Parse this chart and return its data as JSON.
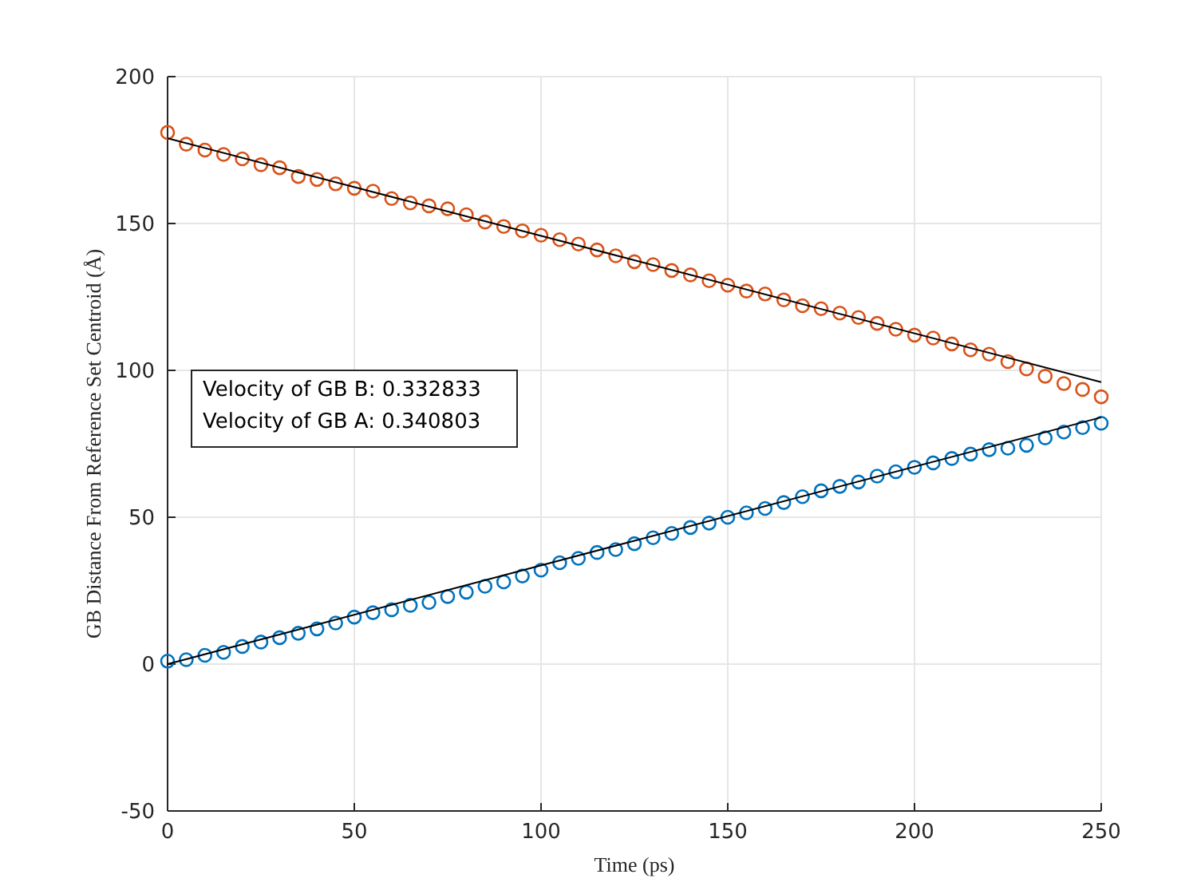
{
  "chart_data": {
    "type": "scatter",
    "xlabel": "Time (ps)",
    "ylabel": "GB Distance From Reference Set Centroid (Å)",
    "xlim": [
      0,
      250
    ],
    "ylim": [
      -50,
      200
    ],
    "xticks": [
      0,
      50,
      100,
      150,
      200,
      250
    ],
    "yticks": [
      -50,
      0,
      50,
      100,
      150,
      200
    ],
    "grid": true,
    "x": [
      0,
      5,
      10,
      15,
      20,
      25,
      30,
      35,
      40,
      45,
      50,
      55,
      60,
      65,
      70,
      75,
      80,
      85,
      90,
      95,
      100,
      105,
      110,
      115,
      120,
      125,
      130,
      135,
      140,
      145,
      150,
      155,
      160,
      165,
      170,
      175,
      180,
      185,
      190,
      195,
      200,
      205,
      210,
      215,
      220,
      225,
      230,
      235,
      240,
      245,
      250
    ],
    "series": [
      {
        "color": "#d95319",
        "marker": "circle",
        "values": [
          181,
          177,
          175,
          173.5,
          172,
          170,
          169,
          166,
          165,
          163.5,
          162,
          161,
          158.5,
          157,
          156,
          155,
          153,
          150.5,
          149,
          147.5,
          146,
          144.5,
          143,
          141,
          139,
          137,
          136,
          134,
          132.5,
          130.5,
          129,
          127,
          126,
          124,
          122,
          121,
          119.5,
          118,
          116,
          114,
          112,
          111,
          109,
          107,
          105.5,
          103,
          100.5,
          98,
          95.5,
          93.5,
          91
        ]
      },
      {
        "color": "#0072bd",
        "marker": "circle",
        "values": [
          1,
          1.5,
          3,
          4,
          6,
          7.5,
          9,
          10.5,
          12,
          14,
          16,
          17.5,
          18.5,
          20,
          21,
          23,
          24.5,
          26.5,
          28,
          30,
          32,
          34.5,
          36,
          38,
          39,
          41,
          43,
          44.5,
          46.5,
          48,
          50,
          51.5,
          53,
          55,
          57,
          59,
          60.5,
          62,
          64,
          65.5,
          67,
          68.5,
          70,
          71.5,
          73,
          73.5,
          74.5,
          77,
          79,
          80.5,
          82
        ]
      },
      {
        "type": "line",
        "color": "#000000",
        "marker": "none",
        "x": [
          0,
          125,
          250
        ],
        "values": [
          179,
          137.5,
          96
        ]
      },
      {
        "type": "line",
        "color": "#000000",
        "marker": "none",
        "x": [
          0,
          125,
          250
        ],
        "values": [
          0,
          42,
          84
        ]
      }
    ],
    "annotations": [
      "Velocity of GB B: 0.332833",
      "Velocity of GB A: 0.340803"
    ]
  }
}
